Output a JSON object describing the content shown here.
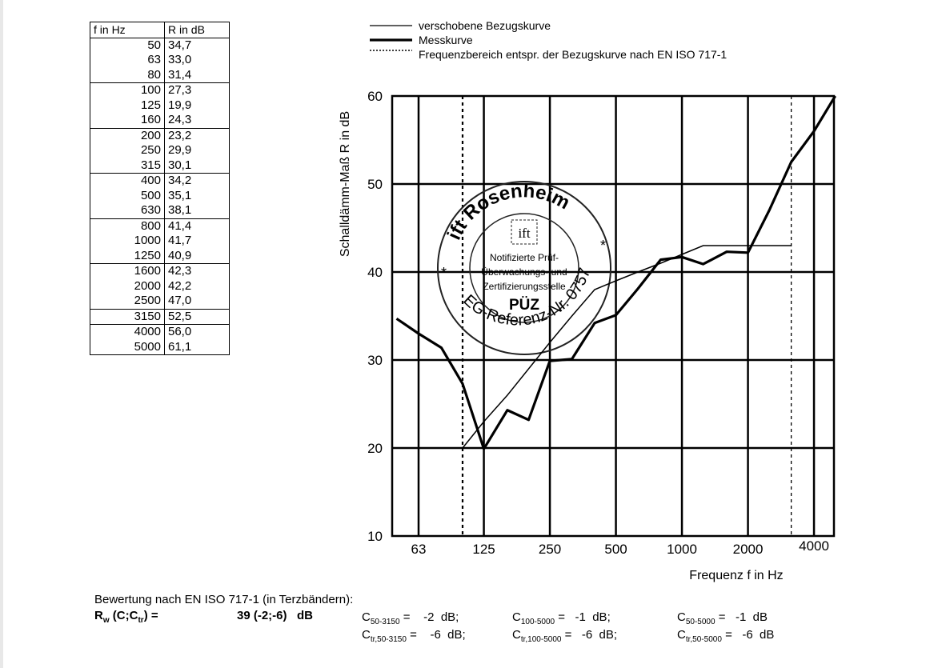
{
  "table": {
    "headers": [
      "f in Hz",
      "R in dB"
    ],
    "rows": [
      [
        "50",
        "34,7"
      ],
      [
        "63",
        "33,0"
      ],
      [
        "80",
        "31,4"
      ],
      [
        "100",
        "27,3"
      ],
      [
        "125",
        "19,9"
      ],
      [
        "160",
        "24,3"
      ],
      [
        "200",
        "23,2"
      ],
      [
        "250",
        "29,9"
      ],
      [
        "315",
        "30,1"
      ],
      [
        "400",
        "34,2"
      ],
      [
        "500",
        "35,1"
      ],
      [
        "630",
        "38,1"
      ],
      [
        "800",
        "41,4"
      ],
      [
        "1000",
        "41,7"
      ],
      [
        "1250",
        "40,9"
      ],
      [
        "1600",
        "42,3"
      ],
      [
        "2000",
        "42,2"
      ],
      [
        "2500",
        "47,0"
      ],
      [
        "3150",
        "52,5"
      ],
      [
        "4000",
        "56,0"
      ],
      [
        "5000",
        "61,1"
      ]
    ]
  },
  "chart_data": {
    "type": "line",
    "xlabel": "Frequenz f in Hz",
    "ylabel": "Schalldämm-Maß R in dB",
    "xscale": "log (third-octave bands)",
    "ylim": [
      10,
      60
    ],
    "yticks": [
      "10",
      "20",
      "30",
      "40",
      "50",
      "60"
    ],
    "xticks": [
      "63",
      "125",
      "250",
      "500",
      "1000",
      "2000",
      "4000"
    ],
    "x": [
      50,
      63,
      80,
      100,
      125,
      160,
      200,
      250,
      315,
      400,
      500,
      630,
      800,
      1000,
      1250,
      1600,
      2000,
      2500,
      3150,
      4000,
      5000
    ],
    "series": [
      {
        "name": "Messkurve",
        "x": [
          50,
          63,
          80,
          100,
          125,
          160,
          200,
          250,
          315,
          400,
          500,
          630,
          800,
          1000,
          1250,
          1600,
          2000,
          2500,
          3150,
          4000,
          5000
        ],
        "values": [
          34.7,
          33.0,
          31.4,
          27.3,
          19.9,
          24.3,
          23.2,
          29.9,
          30.1,
          34.2,
          35.1,
          38.1,
          41.4,
          41.7,
          40.9,
          42.3,
          42.2,
          47.0,
          52.5,
          56.0,
          61.1
        ]
      },
      {
        "name": "verschobene Bezugskurve",
        "x": [
          100,
          125,
          160,
          200,
          250,
          315,
          400,
          500,
          630,
          800,
          1000,
          1250,
          1600,
          2000,
          2500,
          3150
        ],
        "values": [
          20,
          23,
          26,
          29,
          32,
          35,
          38,
          39,
          40,
          41,
          42,
          43,
          43,
          43,
          43,
          43
        ]
      }
    ],
    "range_markers": {
      "name": "Frequenzbereich entspr. der Bezugskurve nach EN ISO 717-1",
      "x": [
        100,
        3150
      ]
    },
    "legend": [
      "verschobene Bezugskurve",
      "Messkurve",
      "Frequenzbereich entspr. der Bezugskurve nach EN ISO 717-1"
    ],
    "legend_position": "top",
    "grid": true
  },
  "stamp": {
    "outer_top": "ift Rosenheim",
    "outer_bottom": "EG-Referenz-Nr. 0757",
    "logo": "ift",
    "lines": [
      "Notifizierte Prüf-",
      "Überwachungs- und",
      "Zertifizierungsstelle"
    ],
    "mark": "PÜZ"
  },
  "rating": {
    "heading": "Bewertung nach EN ISO 717-1 (in Terzbändern):",
    "rw_label": "R",
    "rw_sub": "w",
    "rw_rest": " (C;C",
    "rw_sub2": "tr",
    "rw_end": ") =",
    "rw_value": "39 (-2;-6)   dB",
    "c": [
      {
        "label": "C",
        "sub": "50-3150",
        "value": "=    -2  dB;"
      },
      {
        "label": "C",
        "sub": "100-5000",
        "value": "=   -1  dB;"
      },
      {
        "label": "C",
        "sub": "50-5000",
        "value": "=   -1  dB"
      },
      {
        "label": "C",
        "sub": "tr,50-3150",
        "value": "=    -6  dB;"
      },
      {
        "label": "C",
        "sub": "tr,100-5000",
        "value": "=   -6  dB;"
      },
      {
        "label": "C",
        "sub": "tr,50-5000",
        "value": "=   -6  dB"
      }
    ]
  }
}
